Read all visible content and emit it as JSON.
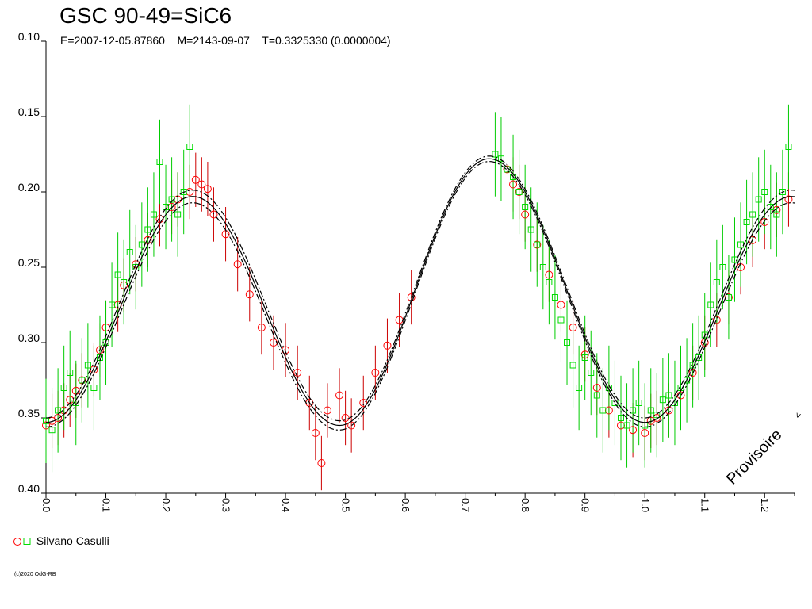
{
  "header": {
    "title": "GSC 90-49=SiC6",
    "subtitle": "E=2007-12-05.87860    M=2143-09-07    T=0.3325330 (0.0000004)"
  },
  "watermark": "Provisoire",
  "legend_label": "Silvano Casulli",
  "copyright": "(c)2020 OdG-RB",
  "colors": {
    "series_circle": "#ff0000",
    "series_square": "#00dd00",
    "errorbar_circle": "#cc0000",
    "errorbar_square": "#00cc00",
    "model": "#000000"
  },
  "chart_data": {
    "type": "scatter",
    "title": "GSC 90-49=SiC6",
    "xlabel": "",
    "ylabel": "",
    "xlim": [
      0.0,
      1.25
    ],
    "ylim": [
      0.4,
      0.1
    ],
    "y_inverted": true,
    "grid": false,
    "legend_position": "bottom-left",
    "x_ticks": [
      "0.0",
      "0.1",
      "0.2",
      "0.3",
      "0.4",
      "0.5",
      "0.6",
      "0.7",
      "0.8",
      "0.9",
      "1.0",
      "1.1",
      "1.2"
    ],
    "y_ticks": [
      "0.10",
      "0.15",
      "0.20",
      "0.25",
      "0.30",
      "0.35",
      "0.40"
    ],
    "model_curve": {
      "description": "fitted light curve with upper/lower envelopes",
      "min_phase_1": 0.0,
      "min_value_1": 0.353,
      "max_phase_1": 0.245,
      "max_value_1": 0.203,
      "min_phase_2": 0.49,
      "min_value_2": 0.355,
      "max_phase_2": 0.74,
      "max_value_2": 0.178,
      "envelope": 0.003
    },
    "series": [
      {
        "name": "Silvano Casulli",
        "marker": "circle",
        "x": [
          0.0,
          0.01,
          0.02,
          0.03,
          0.04,
          0.05,
          0.06,
          0.08,
          0.09,
          0.1,
          0.12,
          0.13,
          0.15,
          0.17,
          0.19,
          0.21,
          0.22,
          0.24,
          0.25,
          0.26,
          0.27,
          0.28,
          0.3,
          0.32,
          0.34,
          0.36,
          0.38,
          0.4,
          0.42,
          0.44,
          0.45,
          0.46,
          0.47,
          0.49,
          0.5,
          0.51,
          0.53,
          0.55,
          0.57,
          0.59,
          0.61,
          0.77,
          0.78,
          0.79,
          0.8,
          0.82,
          0.84,
          0.86,
          0.88,
          0.9,
          0.92,
          0.94,
          0.96,
          0.98,
          1.0,
          1.01,
          1.02,
          1.04,
          1.06,
          1.08,
          1.1,
          1.12,
          1.14,
          1.16,
          1.18,
          1.2,
          1.22,
          1.24
        ],
        "y": [
          0.355,
          0.352,
          0.35,
          0.345,
          0.338,
          0.332,
          0.325,
          0.318,
          0.305,
          0.29,
          0.275,
          0.262,
          0.248,
          0.232,
          0.218,
          0.21,
          0.205,
          0.2,
          0.192,
          0.195,
          0.198,
          0.215,
          0.228,
          0.248,
          0.268,
          0.29,
          0.3,
          0.305,
          0.32,
          0.34,
          0.36,
          0.38,
          0.345,
          0.335,
          0.35,
          0.355,
          0.34,
          0.32,
          0.302,
          0.285,
          0.27,
          0.185,
          0.195,
          0.2,
          0.215,
          0.235,
          0.255,
          0.275,
          0.29,
          0.308,
          0.33,
          0.345,
          0.355,
          0.358,
          0.36,
          0.352,
          0.35,
          0.345,
          0.335,
          0.32,
          0.3,
          0.285,
          0.27,
          0.25,
          0.232,
          0.22,
          0.212,
          0.205
        ]
      },
      {
        "name": "Silvano Casulli",
        "marker": "square",
        "x": [
          0.0,
          0.01,
          0.02,
          0.03,
          0.04,
          0.05,
          0.06,
          0.07,
          0.08,
          0.09,
          0.1,
          0.11,
          0.12,
          0.13,
          0.14,
          0.15,
          0.16,
          0.17,
          0.18,
          0.19,
          0.2,
          0.21,
          0.22,
          0.23,
          0.24,
          0.75,
          0.76,
          0.77,
          0.78,
          0.79,
          0.8,
          0.81,
          0.82,
          0.83,
          0.84,
          0.85,
          0.86,
          0.87,
          0.88,
          0.89,
          0.9,
          0.91,
          0.92,
          0.93,
          0.94,
          0.95,
          0.96,
          0.97,
          0.98,
          0.99,
          1.0,
          1.01,
          1.02,
          1.03,
          1.04,
          1.05,
          1.06,
          1.07,
          1.08,
          1.09,
          1.1,
          1.11,
          1.12,
          1.13,
          1.14,
          1.15,
          1.16,
          1.17,
          1.18,
          1.19,
          1.2,
          1.21,
          1.22,
          1.23,
          1.24
        ],
        "y": [
          0.352,
          0.358,
          0.345,
          0.33,
          0.32,
          0.34,
          0.325,
          0.315,
          0.33,
          0.31,
          0.3,
          0.275,
          0.255,
          0.26,
          0.24,
          0.25,
          0.235,
          0.225,
          0.215,
          0.18,
          0.21,
          0.205,
          0.215,
          0.2,
          0.17,
          0.175,
          0.178,
          0.185,
          0.19,
          0.2,
          0.21,
          0.225,
          0.235,
          0.25,
          0.26,
          0.27,
          0.285,
          0.3,
          0.315,
          0.33,
          0.31,
          0.32,
          0.335,
          0.345,
          0.33,
          0.34,
          0.35,
          0.355,
          0.345,
          0.34,
          0.355,
          0.345,
          0.348,
          0.338,
          0.335,
          0.34,
          0.33,
          0.325,
          0.315,
          0.31,
          0.295,
          0.275,
          0.26,
          0.25,
          0.27,
          0.245,
          0.235,
          0.22,
          0.215,
          0.205,
          0.2,
          0.21,
          0.215,
          0.2,
          0.17
        ]
      }
    ]
  }
}
